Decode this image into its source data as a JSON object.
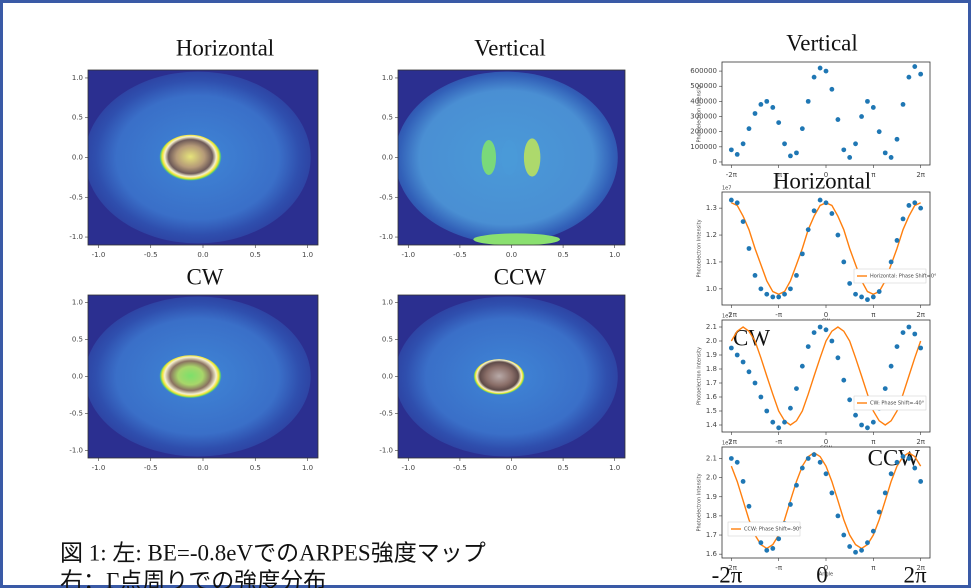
{
  "chart_data": [
    {
      "type": "heatmap",
      "title": "Horizontal",
      "xlim": [
        -1.1,
        1.1
      ],
      "ylim": [
        -1.1,
        1.1
      ],
      "xticks": [
        {
          "value": -1,
          "label": "-1.0"
        },
        -0.5,
        {
          "value": 0,
          "label": "0.0"
        },
        0.5,
        {
          "value": 1,
          "label": "1.0"
        }
      ],
      "yticks": [
        {
          "value": 1,
          "label": "1.0"
        },
        0.5,
        {
          "value": 0,
          "label": "0.0"
        },
        -0.5,
        {
          "value": -1,
          "label": "-1.0"
        }
      ]
    },
    {
      "type": "heatmap",
      "title": "Vertical",
      "xlim": [
        -1.1,
        1.1
      ],
      "ylim": [
        -1.1,
        1.1
      ],
      "xticks": [
        {
          "value": -1,
          "label": "-1.0"
        },
        -0.5,
        {
          "value": 0,
          "label": "0.0"
        },
        0.5,
        {
          "value": 1,
          "label": "1.0"
        }
      ],
      "yticks": [
        {
          "value": 1,
          "label": "1.0"
        },
        0.5,
        {
          "value": 0,
          "label": "0.0"
        },
        -0.5,
        {
          "value": -1,
          "label": "-1.0"
        }
      ]
    },
    {
      "type": "heatmap",
      "title": "CW",
      "xlim": [
        -1.1,
        1.1
      ],
      "ylim": [
        -1.1,
        1.1
      ],
      "xticks": [
        {
          "value": -1,
          "label": "-1.0"
        },
        -0.5,
        {
          "value": 0,
          "label": "0.0"
        },
        0.5,
        {
          "value": 1,
          "label": "1.0"
        }
      ],
      "yticks": [
        {
          "value": 1,
          "label": "1.0"
        },
        0.5,
        {
          "value": 0,
          "label": "0.0"
        },
        -0.5,
        {
          "value": -1,
          "label": "-1.0"
        }
      ]
    },
    {
      "type": "heatmap",
      "title": "CCW",
      "xlim": [
        -1.1,
        1.1
      ],
      "ylim": [
        -1.1,
        1.1
      ],
      "xticks": [
        {
          "value": -1,
          "label": "-1.0"
        },
        -0.5,
        {
          "value": 0,
          "label": "0.0"
        },
        0.5,
        {
          "value": 1,
          "label": "1.0"
        }
      ],
      "yticks": [
        {
          "value": 1,
          "label": "1.0"
        },
        0.5,
        {
          "value": 0,
          "label": "0.0"
        },
        -0.5,
        {
          "value": -1,
          "label": "-1.0"
        }
      ]
    },
    {
      "type": "scatter",
      "title": "Vertical",
      "ylabel": "Photoelectron Intensity",
      "x": [
        -6.28,
        -5.89,
        -5.5,
        -5.11,
        -4.71,
        -4.32,
        -3.93,
        -3.53,
        -3.14,
        -2.75,
        -2.36,
        -1.96,
        -1.57,
        -1.18,
        -0.79,
        -0.39,
        0,
        0.39,
        0.79,
        1.18,
        1.57,
        1.96,
        2.36,
        2.75,
        3.14,
        3.53,
        3.93,
        4.32,
        4.71,
        5.11,
        5.5,
        5.89,
        6.28
      ],
      "series": [
        {
          "color": "#1f77b4",
          "mode": "markers",
          "values": [
            80000,
            50000,
            120000,
            220000,
            320000,
            380000,
            400000,
            360000,
            260000,
            120000,
            40000,
            60000,
            220000,
            400000,
            560000,
            620000,
            600000,
            480000,
            280000,
            80000,
            30000,
            120000,
            300000,
            400000,
            360000,
            200000,
            60000,
            30000,
            150000,
            380000,
            560000,
            630000,
            580000
          ]
        }
      ],
      "xlim": [
        -6.9,
        6.9
      ],
      "ylim": [
        -20000,
        660000
      ],
      "xticks": [
        {
          "value": -6.28,
          "label": "-2π"
        },
        {
          "value": -3.14,
          "label": "-π"
        },
        0,
        {
          "value": 3.14,
          "label": "π"
        },
        {
          "value": 6.28,
          "label": "2π"
        }
      ],
      "yticks": [
        0,
        100000,
        200000,
        300000,
        400000,
        500000,
        600000
      ]
    },
    {
      "type": "scatter",
      "title": "Horizontal",
      "ylabel": "Photoelectron Intensity",
      "xlabel": "CW",
      "offset_text": "1e7",
      "legend": "lower right",
      "x": [
        -6.28,
        -5.89,
        -5.5,
        -5.11,
        -4.71,
        -4.32,
        -3.93,
        -3.53,
        -3.14,
        -2.75,
        -2.36,
        -1.96,
        -1.57,
        -1.18,
        -0.79,
        -0.39,
        0,
        0.39,
        0.79,
        1.18,
        1.57,
        1.96,
        2.36,
        2.75,
        3.14,
        3.53,
        3.93,
        4.32,
        4.71,
        5.11,
        5.5,
        5.89,
        6.28
      ],
      "series": [
        {
          "color": "#ff7f0e",
          "mode": "line",
          "name": "Horizontal: Phase Shift=0°",
          "values": [
            1.32,
            1.31,
            1.27,
            1.22,
            1.15,
            1.09,
            1.03,
            0.99,
            0.98,
            0.99,
            1.03,
            1.09,
            1.15,
            1.22,
            1.27,
            1.31,
            1.32,
            1.31,
            1.27,
            1.22,
            1.15,
            1.09,
            1.03,
            0.99,
            0.98,
            0.99,
            1.03,
            1.09,
            1.15,
            1.22,
            1.27,
            1.31,
            1.32
          ]
        },
        {
          "color": "#1f77b4",
          "mode": "markers",
          "values": [
            1.33,
            1.32,
            1.25,
            1.15,
            1.05,
            1.0,
            0.98,
            0.97,
            0.97,
            0.98,
            1.0,
            1.05,
            1.13,
            1.22,
            1.29,
            1.33,
            1.32,
            1.28,
            1.2,
            1.1,
            1.02,
            0.98,
            0.97,
            0.96,
            0.97,
            0.99,
            1.03,
            1.1,
            1.18,
            1.26,
            1.31,
            1.32,
            1.3
          ]
        }
      ],
      "xlim": [
        -6.9,
        6.9
      ],
      "ylim": [
        0.94,
        1.36
      ],
      "xticks": [
        {
          "value": -6.28,
          "label": "-2π"
        },
        {
          "value": -3.14,
          "label": "-π"
        },
        0,
        {
          "value": 3.14,
          "label": "π"
        },
        {
          "value": 6.28,
          "label": "2π"
        }
      ],
      "yticks": [
        {
          "value": 1,
          "label": "1.0"
        },
        1.1,
        1.2,
        1.3
      ]
    },
    {
      "type": "scatter",
      "title": "CW",
      "ylabel": "Photoelectron Intensity",
      "xlabel": "CCW",
      "offset_text": "1e7",
      "legend": "lower right",
      "x": [
        -6.28,
        -5.89,
        -5.5,
        -5.11,
        -4.71,
        -4.32,
        -3.93,
        -3.53,
        -3.14,
        -2.75,
        -2.36,
        -1.96,
        -1.57,
        -1.18,
        -0.79,
        -0.39,
        0,
        0.39,
        0.79,
        1.18,
        1.57,
        1.96,
        2.36,
        2.75,
        3.14,
        3.53,
        3.93,
        4.32,
        4.71,
        5.11,
        5.5,
        5.89,
        6.28
      ],
      "series": [
        {
          "color": "#ff7f0e",
          "mode": "line",
          "name": "CW: Phase Shift=-40°",
          "values": [
            2.0,
            2.07,
            2.1,
            2.07,
            2.0,
            1.88,
            1.75,
            1.62,
            1.5,
            1.43,
            1.4,
            1.43,
            1.5,
            1.62,
            1.75,
            1.88,
            2.0,
            2.07,
            2.1,
            2.07,
            2.0,
            1.88,
            1.75,
            1.62,
            1.5,
            1.43,
            1.4,
            1.43,
            1.5,
            1.62,
            1.75,
            1.88,
            2.0
          ]
        },
        {
          "color": "#1f77b4",
          "mode": "markers",
          "values": [
            1.95,
            1.9,
            1.85,
            1.78,
            1.7,
            1.6,
            1.5,
            1.42,
            1.38,
            1.42,
            1.52,
            1.66,
            1.82,
            1.96,
            2.06,
            2.1,
            2.08,
            2.0,
            1.88,
            1.72,
            1.58,
            1.47,
            1.4,
            1.38,
            1.42,
            1.52,
            1.66,
            1.82,
            1.96,
            2.06,
            2.1,
            2.05,
            1.95
          ]
        }
      ],
      "xlim": [
        -6.9,
        6.9
      ],
      "ylim": [
        1.35,
        2.15
      ],
      "xticks": [
        {
          "value": -6.28,
          "label": "-2π"
        },
        {
          "value": -3.14,
          "label": "-π"
        },
        0,
        {
          "value": 3.14,
          "label": "π"
        },
        {
          "value": 6.28,
          "label": "2π"
        }
      ],
      "yticks": [
        1.4,
        1.5,
        1.6,
        1.7,
        1.8,
        1.9,
        {
          "value": 2,
          "label": "2.0"
        },
        2.1
      ]
    },
    {
      "type": "scatter",
      "title": "CCW",
      "ylabel": "Photoelectron Intensity",
      "xlabel": "Angle",
      "offset_text": "1e7",
      "legend": "lower left",
      "x": [
        -6.28,
        -5.89,
        -5.5,
        -5.11,
        -4.71,
        -4.32,
        -3.93,
        -3.53,
        -3.14,
        -2.75,
        -2.36,
        -1.96,
        -1.57,
        -1.18,
        -0.79,
        -0.39,
        0,
        0.39,
        0.79,
        1.18,
        1.57,
        1.96,
        2.36,
        2.75,
        3.14,
        3.53,
        3.93,
        4.32,
        4.71,
        5.11,
        5.5,
        5.89,
        6.28
      ],
      "series": [
        {
          "color": "#ff7f0e",
          "mode": "line",
          "name": "CCW: Phase Shift=-90°",
          "values": [
            2.06,
            1.98,
            1.88,
            1.78,
            1.7,
            1.65,
            1.63,
            1.65,
            1.7,
            1.78,
            1.88,
            1.98,
            2.06,
            2.11,
            2.13,
            2.11,
            2.06,
            1.98,
            1.88,
            1.78,
            1.7,
            1.65,
            1.63,
            1.65,
            1.7,
            1.78,
            1.88,
            1.98,
            2.06,
            2.11,
            2.13,
            2.11,
            2.06
          ]
        },
        {
          "color": "#1f77b4",
          "mode": "markers",
          "values": [
            2.1,
            2.08,
            1.98,
            1.85,
            1.74,
            1.66,
            1.62,
            1.63,
            1.68,
            1.76,
            1.86,
            1.96,
            2.05,
            2.1,
            2.12,
            2.08,
            2.02,
            1.92,
            1.8,
            1.7,
            1.64,
            1.61,
            1.62,
            1.66,
            1.72,
            1.82,
            1.92,
            2.02,
            2.08,
            2.11,
            2.1,
            2.05,
            1.98
          ]
        }
      ],
      "xlim": [
        -6.9,
        6.9
      ],
      "ylim": [
        1.58,
        2.16
      ],
      "xticks": [
        {
          "value": -6.28,
          "label": "-2π"
        },
        {
          "value": -3.14,
          "label": "-π"
        },
        0,
        {
          "value": 3.14,
          "label": "π"
        },
        {
          "value": 6.28,
          "label": "2π"
        }
      ],
      "yticks": [
        1.6,
        1.7,
        1.8,
        1.9,
        {
          "value": 2,
          "label": "2.0"
        },
        2.1
      ]
    }
  ],
  "caption": [
    "図 1: 左: BE=-0.8eVでのARPES強度マップ",
    "右：Γ点周りでの強度分布"
  ],
  "bottom_labels": [
    "-2π",
    "0",
    "2π"
  ]
}
